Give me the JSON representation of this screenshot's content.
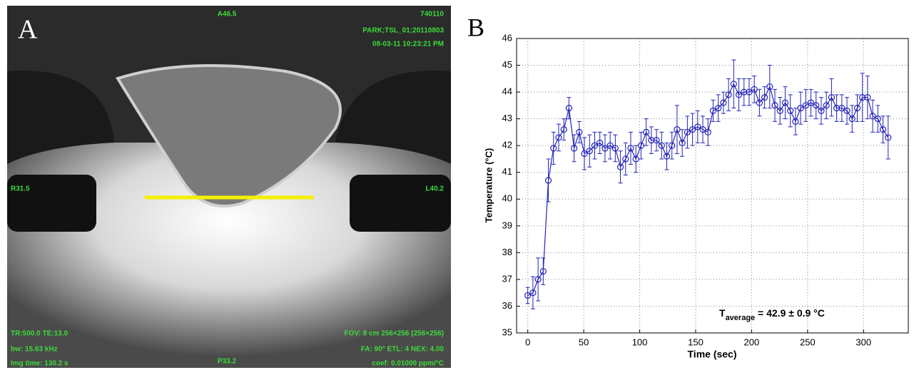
{
  "panel_a": {
    "label": "A",
    "top_center": "A46.5",
    "top_right": [
      "740110",
      "PARK;TSL_01;20110803",
      "08-03-11 10:23:21 PM"
    ],
    "left": "R31.5",
    "right": "L40.2",
    "bottom_left": [
      "TR:500.0 TE:13.0",
      "bw: 15.63 kHz",
      "Img time: 130.2 s"
    ],
    "bottom_center": "P33.2",
    "bottom_right": [
      "FOV: 8 cm 256×256 (256×256)",
      "FA: 90° ETL: 4 NEX: 4.00",
      "coef: 0.01000 ppm/°C"
    ]
  },
  "chart_data": {
    "type": "errorbar-line",
    "panel_label": "B",
    "x_label": "Time (sec)",
    "y_label": "Temperature (°C)",
    "annotation": {
      "main": "T",
      "sub": "average",
      "rest": " = 42.9 ± 0.9 °C"
    },
    "x": [
      0,
      4.6,
      9.2,
      13.8,
      18.4,
      23,
      27.6,
      32.2,
      36.8,
      41.4,
      46,
      50.6,
      55.2,
      59.8,
      64.4,
      69,
      73.6,
      78.2,
      82.8,
      87.4,
      92,
      96.6,
      101.2,
      105.8,
      110.4,
      115,
      119.6,
      124.2,
      128.8,
      133.4,
      138,
      142.6,
      147.2,
      151.8,
      156.4,
      161,
      165.6,
      170.2,
      174.8,
      179.4,
      184,
      188.6,
      193.2,
      197.8,
      202.4,
      207,
      211.6,
      216.2,
      220.8,
      225.4,
      230,
      234.6,
      239.2,
      243.8,
      248.4,
      253,
      257.6,
      262.2,
      266.8,
      271.4,
      276,
      280.6,
      285.2,
      289.8,
      294.4,
      299,
      303.6,
      308.2,
      312.8,
      317.4,
      322
    ],
    "series": [
      {
        "color": "#2323b8",
        "values": [
          36.4,
          36.5,
          37.0,
          37.3,
          40.7,
          41.9,
          42.3,
          42.6,
          43.4,
          41.9,
          42.5,
          41.7,
          41.8,
          42.0,
          42.1,
          41.9,
          42.0,
          41.9,
          41.2,
          41.5,
          41.9,
          41.5,
          42.0,
          42.5,
          42.2,
          42.2,
          42.0,
          41.6,
          42.0,
          42.6,
          42.1,
          42.5,
          42.6,
          42.7,
          42.6,
          42.5,
          43.3,
          43.4,
          43.6,
          43.9,
          44.3,
          43.9,
          44.0,
          44.0,
          44.1,
          43.6,
          43.8,
          44.2,
          43.5,
          43.3,
          43.6,
          43.3,
          42.9,
          43.4,
          43.5,
          43.6,
          43.5,
          43.3,
          43.5,
          43.8,
          43.4,
          43.4,
          43.3,
          43.0,
          43.4,
          43.8,
          43.8,
          43.1,
          43.0,
          42.6,
          42.3
        ],
        "errors": [
          0.3,
          0.6,
          0.8,
          0.5,
          0.8,
          0.6,
          0.5,
          0.4,
          0.4,
          0.5,
          0.4,
          0.6,
          0.6,
          0.5,
          0.4,
          0.5,
          0.5,
          0.5,
          0.6,
          0.6,
          0.6,
          0.5,
          0.5,
          0.5,
          0.5,
          0.4,
          0.5,
          0.5,
          0.5,
          0.9,
          0.5,
          0.6,
          0.6,
          0.6,
          0.5,
          0.5,
          0.4,
          0.5,
          0.4,
          0.6,
          0.9,
          0.6,
          0.5,
          0.5,
          0.5,
          0.5,
          0.4,
          0.8,
          0.6,
          0.5,
          0.6,
          0.6,
          0.5,
          0.6,
          0.6,
          0.5,
          0.5,
          0.5,
          0.5,
          0.7,
          0.5,
          0.5,
          0.5,
          0.5,
          0.5,
          0.9,
          0.8,
          0.6,
          0.5,
          0.5,
          0.8
        ]
      }
    ],
    "xlim": [
      -10,
      340
    ],
    "ylim": [
      35,
      46
    ],
    "xticks": [
      0,
      50,
      100,
      150,
      200,
      250,
      300
    ],
    "yticks": [
      35,
      36,
      37,
      38,
      39,
      40,
      41,
      42,
      43,
      44,
      45,
      46
    ],
    "grid": true
  }
}
